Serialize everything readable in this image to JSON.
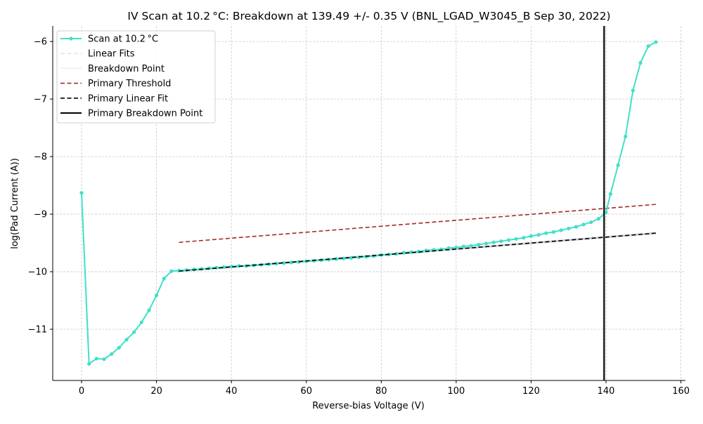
{
  "chart_data": {
    "type": "line",
    "title": "IV Scan at 10.2$^\\circ$C: Breakdown at 139.49 +/- 0.35 V (BNL_LGAD_W3045_B Sep 30, 2022)",
    "title_display": "IV Scan at 10.2 °C: Breakdown at 139.49 +/- 0.35 V (BNL_LGAD_W3045_B Sep 30, 2022)",
    "xlabel": "Reverse-bias Voltage (V)",
    "ylabel": "log(Pad Current (A))",
    "xlim": [
      -7.7,
      161.2
    ],
    "ylim": [
      -11.89,
      -5.73
    ],
    "xticks": [
      0,
      20,
      40,
      60,
      80,
      100,
      120,
      140,
      160
    ],
    "yticks": [
      -11,
      -10,
      -9,
      -8,
      -7,
      -6
    ],
    "grid": true,
    "legend_position": "upper left",
    "colors": {
      "scan": "#40e0c8",
      "threshold": "#a52a2a",
      "primary": "#000000",
      "linear_fits": "#e6e6e6",
      "grid": "#c8c8c8"
    },
    "legend": [
      {
        "label": "Scan at 10.2 °C",
        "style": "scan"
      },
      {
        "label": "Linear Fits",
        "style": "linear_fits"
      },
      {
        "label": "Breakdown Point",
        "style": "breakdown_faint"
      },
      {
        "label": "Primary Threshold",
        "style": "threshold"
      },
      {
        "label": "Primary Linear Fit",
        "style": "primary_fit"
      },
      {
        "label": "Primary Breakdown Point",
        "style": "primary_breakdown"
      }
    ],
    "series": [
      {
        "name": "Scan at 10.2 °C",
        "x": [
          0,
          2,
          4,
          6,
          8,
          10,
          12,
          14,
          16,
          18,
          20,
          22,
          24,
          26,
          28,
          30,
          32,
          34,
          36,
          38,
          40,
          42,
          44,
          46,
          48,
          50,
          52,
          54,
          56,
          58,
          60,
          62,
          64,
          66,
          68,
          70,
          72,
          74,
          76,
          78,
          80,
          82,
          84,
          86,
          88,
          90,
          92,
          94,
          96,
          98,
          100,
          102,
          104,
          106,
          108,
          110,
          112,
          114,
          116,
          118,
          120,
          122,
          124,
          126,
          128,
          130,
          132,
          134,
          136,
          138,
          140,
          141.2,
          143.2,
          145.2,
          147.2,
          149.2,
          151.3,
          153.3
        ],
        "y": [
          -8.63,
          -11.6,
          -11.51,
          -11.52,
          -11.43,
          -11.32,
          -11.18,
          -11.05,
          -10.88,
          -10.67,
          -10.41,
          -10.12,
          -9.99,
          -9.98,
          -9.97,
          -9.96,
          -9.95,
          -9.94,
          -9.93,
          -9.92,
          -9.91,
          -9.9,
          -9.9,
          -9.89,
          -9.88,
          -9.87,
          -9.86,
          -9.85,
          -9.84,
          -9.83,
          -9.82,
          -9.81,
          -9.8,
          -9.79,
          -9.78,
          -9.77,
          -9.76,
          -9.75,
          -9.74,
          -9.73,
          -9.71,
          -9.7,
          -9.69,
          -9.67,
          -9.66,
          -9.65,
          -9.63,
          -9.62,
          -9.61,
          -9.59,
          -9.58,
          -9.56,
          -9.55,
          -9.53,
          -9.51,
          -9.49,
          -9.47,
          -9.45,
          -9.43,
          -9.41,
          -9.38,
          -9.36,
          -9.33,
          -9.31,
          -9.28,
          -9.25,
          -9.22,
          -9.18,
          -9.14,
          -9.08,
          -8.97,
          -8.65,
          -8.15,
          -7.65,
          -6.85,
          -6.37,
          -6.08,
          -6.01
        ]
      },
      {
        "name": "Primary Threshold",
        "x": [
          26,
          153.3
        ],
        "y": [
          -9.49,
          -8.83
        ]
      },
      {
        "name": "Primary Linear Fit",
        "x": [
          26,
          153.3
        ],
        "y": [
          -9.99,
          -9.33
        ]
      },
      {
        "name": "Primary Breakdown Point",
        "x": [
          139.49,
          139.49
        ],
        "y": [
          -11.89,
          -5.73
        ]
      }
    ],
    "breakdown_voltage": 139.49,
    "breakdown_uncertainty": 0.35
  }
}
